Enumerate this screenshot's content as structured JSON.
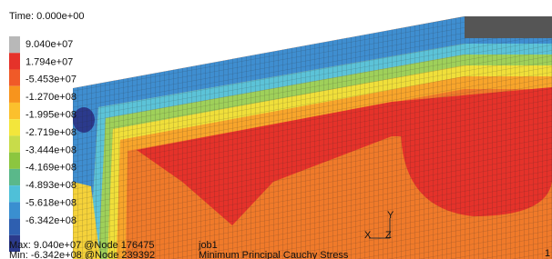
{
  "header": {
    "time": "Time: 0.000e+00"
  },
  "legend": {
    "labels": [
      "9.040e+07",
      "1.794e+07",
      "-5.453e+07",
      "-1.270e+08",
      "-1.995e+08",
      "-2.719e+08",
      "-3.444e+08",
      "-4.169e+08",
      "-4.893e+08",
      "-5.618e+08",
      "-6.342e+08"
    ]
  },
  "footer": {
    "max": "Max:  9.040e+07 @Node  176475",
    "min": "Min: -6.342e+08 @Node  239392",
    "job": "job1",
    "result": "Minimum Principal Cauchy Stress",
    "frame": "1"
  },
  "triad": {
    "y": "Y",
    "x": "X",
    "z": "Z"
  }
}
